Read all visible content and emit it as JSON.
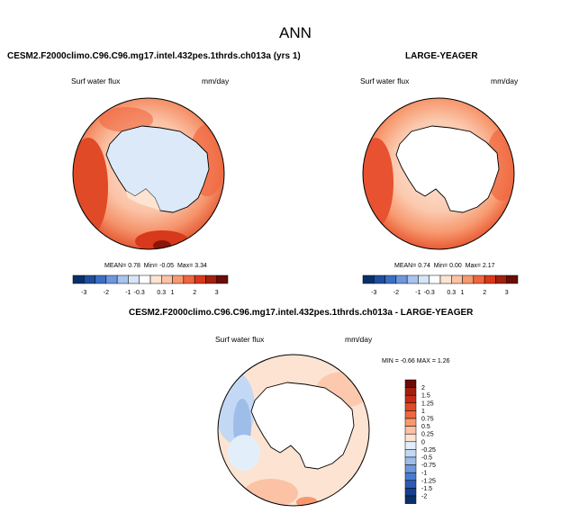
{
  "page_title": "ANN",
  "panels": [
    {
      "title": "CESM2.F2000climo.C96.C96.mg17.intel.432pes.1thrds.ch013a (yrs 1)",
      "variable": "Surf water flux",
      "units": "mm/day",
      "stats": {
        "mean_label": "MEAN=",
        "mean": "0.78",
        "min_label": "Min=",
        "min": "-0.05",
        "max_label": "Max=",
        "max": "3.34"
      }
    },
    {
      "title": "LARGE-YEAGER",
      "variable": "Surf water flux",
      "units": "mm/day",
      "stats": {
        "mean_label": "MEAN=",
        "mean": "0.74",
        "min_label": "Min=",
        "min": "0.00",
        "max_label": "Max=",
        "max": "2.17"
      }
    },
    {
      "title": "CESM2.F2000climo.C96.C96.mg17.intel.432pes.1thrds.ch013a - LARGE-YEAGER",
      "variable": "Surf water flux",
      "units": "mm/day",
      "stats": {
        "min_label": "MIN =",
        "min": "-0.66",
        "max_label": "MAX =",
        "max": "1.26"
      }
    }
  ],
  "colorbar_top": {
    "labels": [
      "-3",
      "-2",
      "-1",
      "-0.3",
      "0.3",
      "1",
      "2",
      "3"
    ],
    "colors": [
      "#08306b",
      "#1f4e9e",
      "#3a6fc4",
      "#6f97dd",
      "#a8c4ee",
      "#d6e6f8",
      "#ffffff",
      "#fde3d2",
      "#fbc2a5",
      "#f7996f",
      "#f0663f",
      "#d8381b",
      "#a3200e",
      "#6b0c05"
    ]
  },
  "colorbar_diff": {
    "labels": [
      "2",
      "1.5",
      "1.25",
      "1",
      "0.75",
      "0.5",
      "0.25",
      "0",
      "-0.25",
      "-0.5",
      "-0.75",
      "-1",
      "-1.25",
      "-1.5",
      "-2"
    ],
    "colors": [
      "#6b0c05",
      "#a3200e",
      "#c62c15",
      "#e04a26",
      "#f0663f",
      "#f7996f",
      "#fbc2a5",
      "#fde3d2",
      "#e3eefb",
      "#c3d8f4",
      "#9ebde9",
      "#6f97dd",
      "#4a7bd0",
      "#2c5bb5",
      "#173f91",
      "#08306b"
    ]
  }
}
